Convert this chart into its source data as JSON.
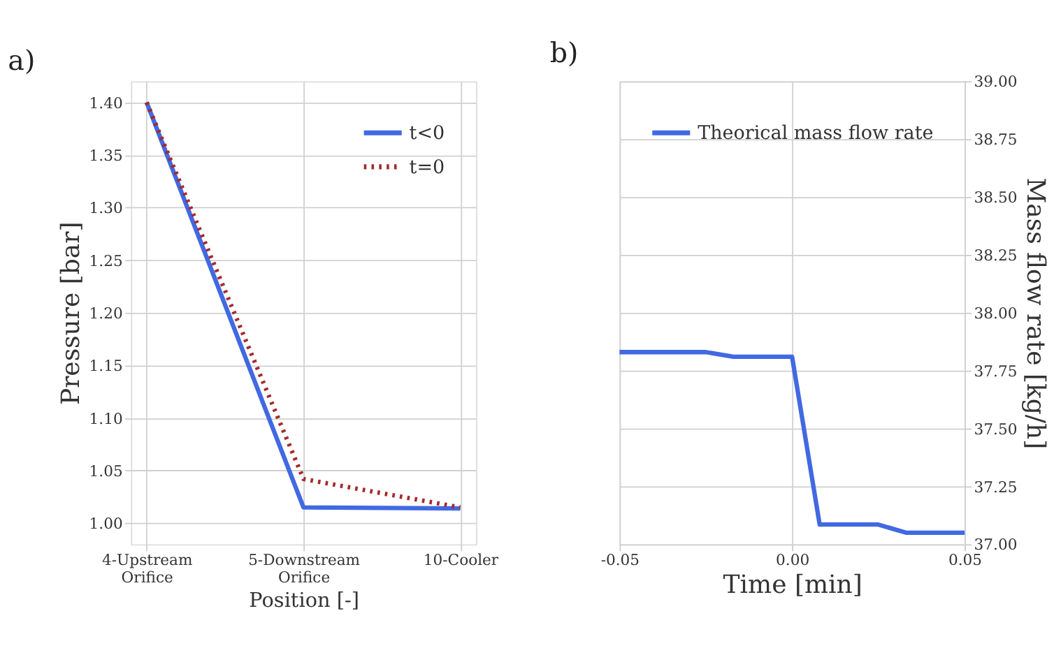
{
  "chart_data": [
    {
      "type": "line",
      "title": "a)",
      "xlabel": "Position [-]",
      "ylabel": "Pressure [bar]",
      "categories": [
        "4-Upstream Orifice",
        "5-Downstream Orifice",
        "10-Cooler"
      ],
      "ylim": [
        0.98,
        1.42
      ],
      "yticks": [
        {
          "value": 1.0,
          "label": "1.00"
        },
        1.05,
        {
          "value": 1.1,
          "label": "1.10"
        },
        1.15,
        {
          "value": 1.2,
          "label": "1.20"
        },
        1.25,
        {
          "value": 1.3,
          "label": "1.30"
        },
        1.35,
        {
          "value": 1.4,
          "label": "1.40"
        }
      ],
      "grid": true,
      "legend": "top right",
      "series": [
        {
          "name": "t<0",
          "color": "#4169e1",
          "line_style": "solid",
          "values": [
            1.4,
            1.015,
            1.014
          ]
        },
        {
          "name": "t=0",
          "color": "#a52a2a",
          "line_style": "dotted",
          "values": [
            1.4,
            1.042,
            1.015
          ]
        }
      ]
    },
    {
      "type": "line",
      "title": "b)",
      "xlabel": "Time [min]",
      "y2label": "Mass flow rate [kg/h]",
      "xlim": [
        -0.05,
        0.05
      ],
      "xticks": [
        -0.05,
        {
          "value": 0.0,
          "label": "0.00"
        },
        0.05
      ],
      "y2lim": [
        37.0,
        39.0
      ],
      "y2ticks": [
        {
          "value": 37.0,
          "label": "37.00"
        },
        37.25,
        {
          "value": 37.5,
          "label": "37.50"
        },
        37.75,
        {
          "value": 38.0,
          "label": "38.00"
        },
        38.25,
        {
          "value": 38.5,
          "label": "38.50"
        },
        38.75,
        {
          "value": 39.0,
          "label": "39.00"
        }
      ],
      "grid": true,
      "legend": "top left",
      "series": [
        {
          "name": "Theorical mass flow rate",
          "color": "#4169e1",
          "line_style": "solid",
          "axis": "y2",
          "x": [
            -0.05,
            -0.025,
            -0.017,
            0.0,
            0.008,
            0.025,
            0.033,
            0.05
          ],
          "values": [
            37.83,
            37.83,
            37.81,
            37.81,
            37.085,
            37.085,
            37.05,
            37.05
          ]
        }
      ]
    }
  ]
}
